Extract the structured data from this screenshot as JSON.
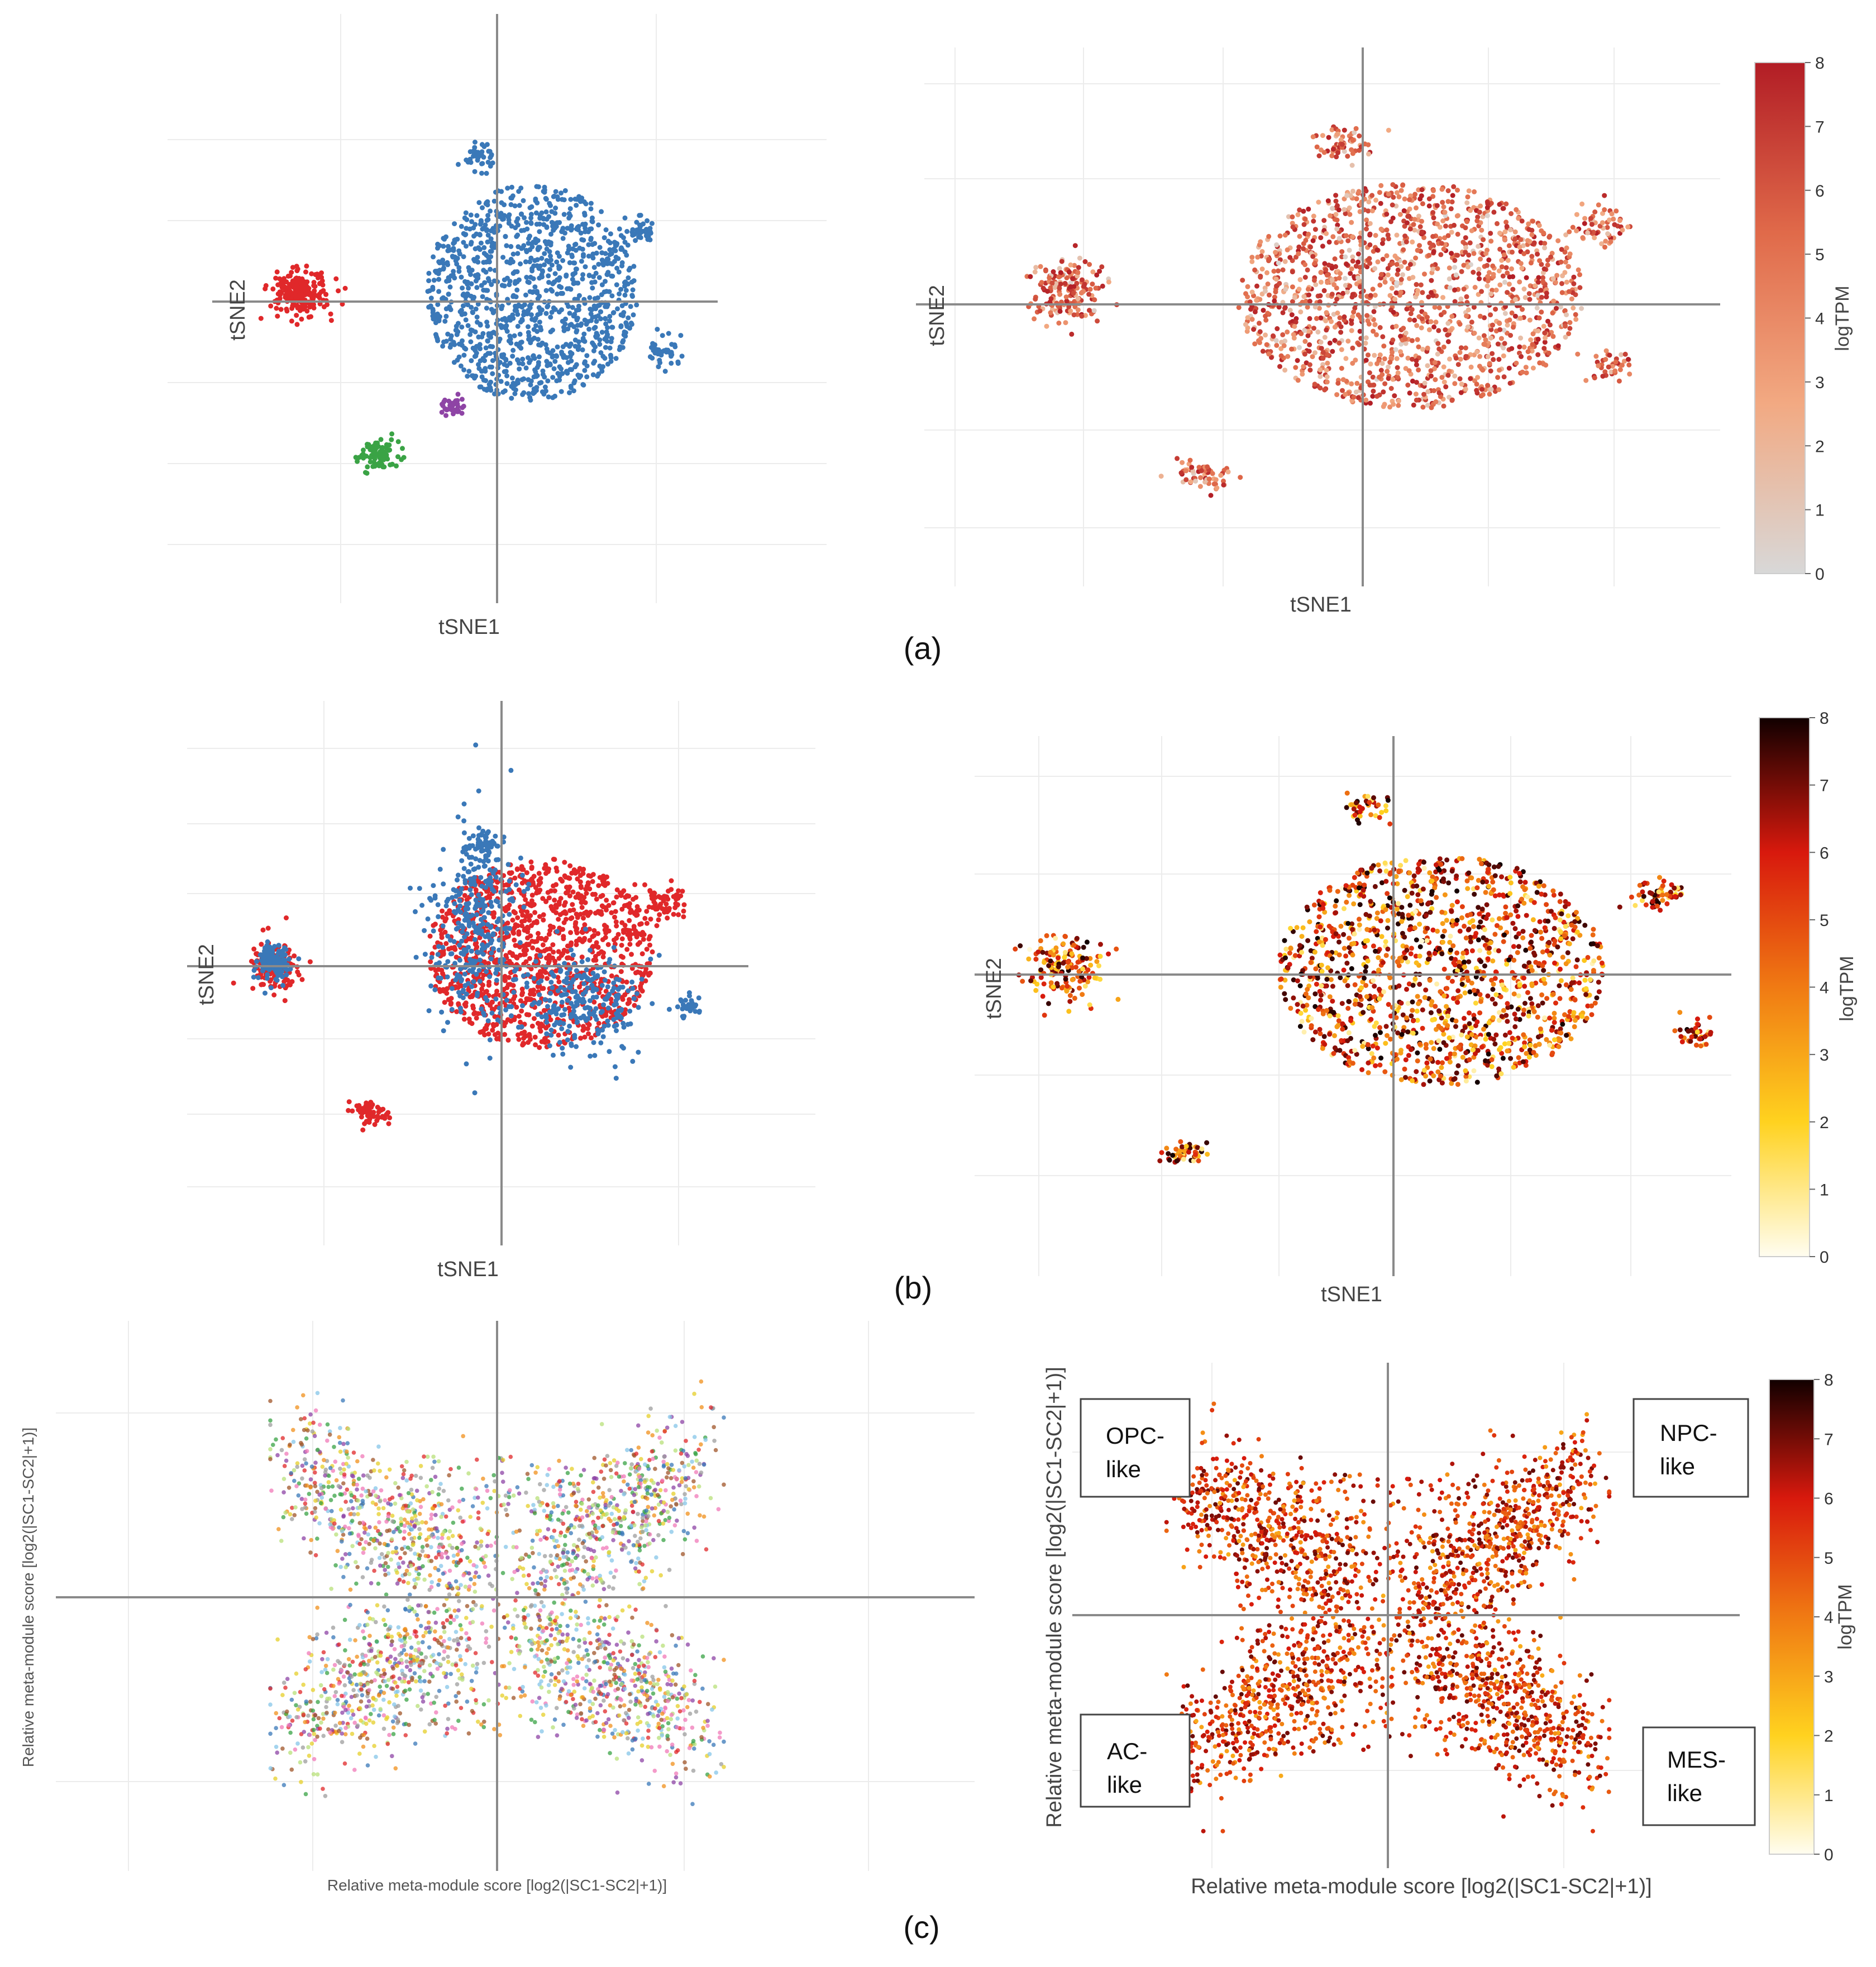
{
  "figure": {
    "panel_labels": [
      "(a)",
      "(b)",
      "(c)"
    ]
  },
  "chart_data": [
    {
      "id": "a-left",
      "type": "scatter",
      "title": "",
      "xlabel": "tSNE1",
      "ylabel": "tSNE2",
      "color_mode": "categorical",
      "xlim": [
        -60,
        60
      ],
      "ylim": [
        -60,
        60
      ],
      "clusters": [
        {
          "name": "blue",
          "color": "#3a78b8",
          "cx": 8,
          "cy": 2,
          "sx": 15,
          "sy": 16,
          "n": 1500
        },
        {
          "name": "blue-top",
          "color": "#3a78b8",
          "cx": -4,
          "cy": 33,
          "sx": 2,
          "sy": 1.5,
          "n": 40
        },
        {
          "name": "blue-right-top",
          "color": "#3a78b8",
          "cx": 33,
          "cy": 16,
          "sx": 2,
          "sy": 2,
          "n": 40
        },
        {
          "name": "blue-right",
          "color": "#3a78b8",
          "cx": 38,
          "cy": -11,
          "sx": 2,
          "sy": 2,
          "n": 40
        },
        {
          "name": "red",
          "color": "#e0282a",
          "cx": -45,
          "cy": 2,
          "sx": 3.2,
          "sy": 2.6,
          "n": 220
        },
        {
          "name": "purple",
          "color": "#8e44a5",
          "cx": -10,
          "cy": -24,
          "sx": 1.4,
          "sy": 1.0,
          "n": 40
        },
        {
          "name": "green",
          "color": "#3aa345",
          "cx": -27,
          "cy": -35,
          "sx": 2.2,
          "sy": 1.8,
          "n": 90
        }
      ]
    },
    {
      "id": "a-right",
      "type": "scatter",
      "title": "",
      "xlabel": "tSNE1",
      "ylabel": "tSNE2",
      "color_mode": "expression",
      "colorscale": [
        "#d8d8d8",
        "#f2a982",
        "#e06a4a",
        "#b21d25"
      ],
      "colorbar": {
        "title": "logTPM",
        "ticks": [
          "0",
          "1",
          "2",
          "3",
          "4",
          "5",
          "6",
          "7",
          "8"
        ],
        "range": [
          0,
          8
        ]
      },
      "xlim": [
        -60,
        60
      ],
      "ylim": [
        -60,
        60
      ],
      "clusters": [
        {
          "name": "main",
          "cx": 8,
          "cy": 2,
          "sx": 18,
          "sy": 17,
          "n": 1900
        },
        {
          "name": "top",
          "cx": -4,
          "cy": 38,
          "sx": 2.5,
          "sy": 2,
          "n": 60
        },
        {
          "name": "right-top",
          "cx": 40,
          "cy": 18,
          "sx": 2.5,
          "sy": 2.5,
          "n": 60
        },
        {
          "name": "right",
          "cx": 42,
          "cy": -14,
          "sx": 2,
          "sy": 2,
          "n": 40
        },
        {
          "name": "left",
          "cx": -50,
          "cy": 3,
          "sx": 3.2,
          "sy": 4,
          "n": 180
        },
        {
          "name": "bottom",
          "cx": -27,
          "cy": -40,
          "sx": 2.5,
          "sy": 1.8,
          "n": 60
        }
      ]
    },
    {
      "id": "b-left",
      "type": "scatter",
      "title": "",
      "xlabel": "tSNE1",
      "ylabel": "tSNE2",
      "color_mode": "categorical",
      "xlim": [
        -60,
        60
      ],
      "ylim": [
        -60,
        60
      ],
      "clusters": [
        {
          "name": "red-main",
          "color": "#e0282a",
          "cx": 9,
          "cy": 3,
          "sx": 16,
          "sy": 14,
          "n": 1500
        },
        {
          "name": "blue-main-a",
          "color": "#3a78b8",
          "cx": -6,
          "cy": 8,
          "sx": 5,
          "sy": 12,
          "n": 350
        },
        {
          "name": "blue-main-b",
          "color": "#3a78b8",
          "cx": 19,
          "cy": -8,
          "sx": 6,
          "sy": 6,
          "n": 250
        },
        {
          "name": "blue-top",
          "color": "#3a78b8",
          "cx": -4,
          "cy": 28,
          "sx": 2,
          "sy": 1.5,
          "n": 40
        },
        {
          "name": "blue-right",
          "color": "#3a78b8",
          "cx": 43,
          "cy": -10,
          "sx": 1.5,
          "sy": 1.5,
          "n": 30
        },
        {
          "name": "red-right-top",
          "color": "#e0282a",
          "cx": 37,
          "cy": 15,
          "sx": 2.5,
          "sy": 2,
          "n": 60
        },
        {
          "name": "red-left",
          "color": "#e0282a",
          "cx": -52,
          "cy": 0,
          "sx": 3,
          "sy": 2.8,
          "n": 120
        },
        {
          "name": "blue-left",
          "color": "#3a78b8",
          "cx": -52,
          "cy": 0.5,
          "sx": 2,
          "sy": 2,
          "n": 120
        },
        {
          "name": "red-bottom",
          "color": "#e0282a",
          "cx": -30,
          "cy": -33,
          "sx": 2,
          "sy": 1.5,
          "n": 60
        }
      ]
    },
    {
      "id": "b-right",
      "type": "scatter",
      "title": "",
      "xlabel": "tSNE1",
      "ylabel": "tSNE2",
      "color_mode": "expression",
      "colorscale": [
        "#fffdf0",
        "#ffd21f",
        "#f07a13",
        "#d8190d",
        "#110000"
      ],
      "colorbar": {
        "title": "logTPM",
        "ticks": [
          "0",
          "1",
          "2",
          "3",
          "4",
          "5",
          "6",
          "7",
          "8"
        ],
        "range": [
          0,
          8
        ]
      },
      "xlim": [
        -60,
        60
      ],
      "ylim": [
        -60,
        60
      ],
      "clusters": [
        {
          "name": "main",
          "cx": 8,
          "cy": 1,
          "sx": 17,
          "sy": 17,
          "n": 1800
        },
        {
          "name": "top",
          "cx": -5,
          "cy": 38,
          "sx": 2,
          "sy": 1.5,
          "n": 40
        },
        {
          "name": "right-top",
          "cx": 45,
          "cy": 18,
          "sx": 2.5,
          "sy": 2,
          "n": 60
        },
        {
          "name": "right",
          "cx": 51,
          "cy": -13,
          "sx": 1.4,
          "sy": 2,
          "n": 40
        },
        {
          "name": "left",
          "cx": -55,
          "cy": 2,
          "sx": 3.5,
          "sy": 4,
          "n": 160
        },
        {
          "name": "bottom",
          "cx": -35,
          "cy": -41,
          "sx": 1.8,
          "sy": 1.4,
          "n": 50
        }
      ]
    },
    {
      "id": "c-left",
      "type": "scatter",
      "title": "",
      "xlabel": "Relative meta-module score [log2(|SC1-SC2|+1)]",
      "ylabel": "Relative meta-module score [log2(|SC1-SC2|+1)]",
      "color_mode": "multicategory",
      "category_colors": [
        "#e0282a",
        "#3a78b8",
        "#3aa345",
        "#8e44a5",
        "#f0901c",
        "#e6cf2a",
        "#a0562a",
        "#f07ab8",
        "#9e9e9e",
        "#85c6e8",
        "#b8e07a"
      ],
      "xlim": [
        -1.5,
        1.5
      ],
      "ylim": [
        -1.5,
        1.5
      ],
      "n_points": 2600
    },
    {
      "id": "c-right",
      "type": "scatter",
      "title": "",
      "xlabel": "Relative meta-module score [log2(|SC1-SC2|+1)]",
      "ylabel": "Relative meta-module score [log2(|SC1-SC2|+1)]",
      "color_mode": "expression",
      "colorscale": [
        "#fffdf0",
        "#ffd21f",
        "#f07a13",
        "#d8190d",
        "#110000"
      ],
      "colorbar": {
        "title": "logTPM",
        "ticks": [
          "0",
          "1",
          "2",
          "3",
          "4",
          "5",
          "6",
          "7",
          "8"
        ],
        "range": [
          0,
          8
        ]
      },
      "xlim": [
        -1.5,
        1.5
      ],
      "ylim": [
        -1.5,
        1.5
      ],
      "n_points": 2600,
      "quadrant_labels": [
        {
          "line1": "OPC-",
          "line2": "like",
          "position": "top-left"
        },
        {
          "line1": "NPC-",
          "line2": "like",
          "position": "top-right"
        },
        {
          "line1": "AC-",
          "line2": "like",
          "position": "bottom-left"
        },
        {
          "line1": "MES-",
          "line2": "like",
          "position": "bottom-right"
        }
      ]
    }
  ]
}
